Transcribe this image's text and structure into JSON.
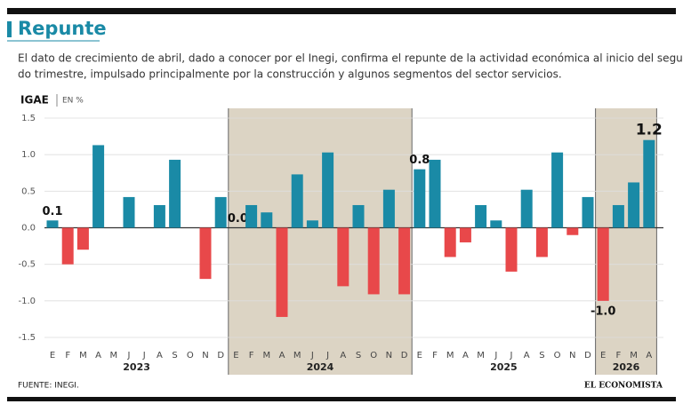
{
  "chart_data": {
    "type": "bar",
    "title": "Repunte",
    "subtitle_lines": [
      "El dato de crecimiento de abril, dado a conocer por el Inegi, confirma el repunte de la actividad económica al inicio del segun-",
      "do trimestre, impulsado principalmente por la construcción y algunos segmentos del sector servicios."
    ],
    "ylabel": "IGAE",
    "yunit": "EN %",
    "source": "FUENTE:  INEGI.",
    "brand": "EL ECONOMISTA",
    "ylim": [
      -1.5,
      1.5
    ],
    "yticks": [
      1.5,
      {
        "value": 1,
        "label": "1.0"
      },
      0.5,
      {
        "value": 0,
        "label": "0.0"
      },
      -0.5,
      {
        "value": -1,
        "label": "-1.0"
      },
      -1.5
    ],
    "positive_color": "#1a8aa6",
    "negative_color": "#e8484a",
    "shade_color": "#dcd4c4",
    "groups": [
      {
        "name": "2023",
        "categories": [
          "E",
          "F",
          "M",
          "A",
          "M",
          "J",
          "J",
          "A",
          "S",
          "O",
          "N",
          "D"
        ],
        "values": [
          0.1,
          -0.5,
          -0.3,
          1.13,
          0,
          0.42,
          0,
          0.31,
          0.93,
          0,
          -0.7,
          0.42
        ],
        "value_labels": [
          "0.1",
          null,
          null,
          null,
          null,
          null,
          null,
          null,
          null,
          null,
          null,
          null
        ]
      },
      {
        "name": "2024",
        "categories": [
          "E",
          "F",
          "M",
          "A",
          "M",
          "J",
          "J",
          "A",
          "S",
          "O",
          "N",
          "D"
        ],
        "values": [
          0,
          0.31,
          0.21,
          -1.22,
          0.73,
          0.1,
          1.03,
          -0.8,
          0.31,
          -0.91,
          0.52,
          -0.91
        ],
        "value_labels": [
          "0.0",
          null,
          null,
          null,
          null,
          null,
          null,
          null,
          null,
          null,
          null,
          null
        ]
      },
      {
        "name": "2025",
        "categories": [
          "E",
          "F",
          "M",
          "A",
          "M",
          "J",
          "J",
          "A",
          "S",
          "O",
          "N",
          "D"
        ],
        "values": [
          0.8,
          0.93,
          -0.4,
          -0.2,
          0.31,
          0.1,
          -0.6,
          0.52,
          -0.4,
          1.03,
          -0.1,
          0.42
        ],
        "value_labels": [
          "0.8",
          null,
          null,
          null,
          null,
          null,
          null,
          null,
          null,
          null,
          null,
          null
        ]
      },
      {
        "name": "2026",
        "categories": [
          "E",
          "F",
          "M",
          "A"
        ],
        "values": [
          -1,
          0.31,
          0.62,
          1.2
        ],
        "value_labels": [
          "-1.0",
          null,
          null,
          "1.2"
        ]
      }
    ]
  }
}
